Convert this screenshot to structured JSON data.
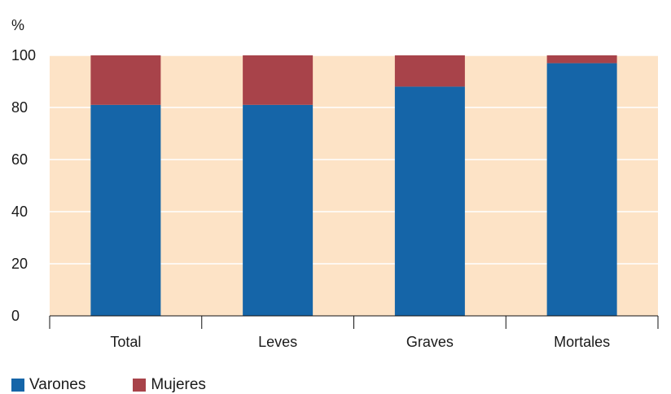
{
  "chart_data": {
    "type": "bar",
    "stacked": true,
    "ylabel": "%",
    "xlabel": "",
    "title": "",
    "ylim": [
      0,
      100
    ],
    "yticks": [
      0,
      20,
      40,
      60,
      80,
      100
    ],
    "categories": [
      "Total",
      "Leves",
      "Graves",
      "Mortales"
    ],
    "series": [
      {
        "name": "Varones",
        "color": "#1565a8",
        "values": [
          81,
          81,
          88,
          97
        ]
      },
      {
        "name": "Mujeres",
        "color": "#a8434a",
        "values": [
          19,
          19,
          12,
          3
        ]
      }
    ],
    "plot_background": "#fde3c6",
    "grid": true,
    "legend_position": "bottom-left"
  }
}
